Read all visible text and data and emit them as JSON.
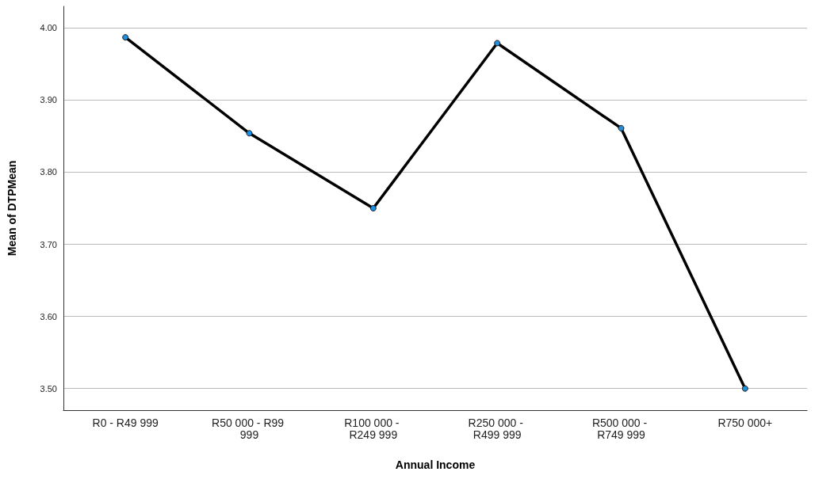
{
  "chart_data": {
    "type": "line",
    "xlabel": "Annual Income",
    "ylabel": "Mean of DTPMean",
    "categories": [
      "R0 - R49 999",
      "R50 000 - R99 999",
      "R100 000 - R249 999",
      "R250 000 - R499 999",
      "R500 000 - R749 999",
      "R750 000+"
    ],
    "series": [
      {
        "color": "#000000",
        "colors": [
          "#1f8fe0",
          "#1f8fe0",
          "#1f8fe0",
          "#1f8fe0",
          "#1f8fe0",
          "#1f8fe0"
        ],
        "values": [
          3.987,
          3.854,
          3.75,
          3.979,
          3.861,
          3.5
        ]
      }
    ],
    "ylim": [
      3.47,
      4.03
    ],
    "yticks": [
      {
        "value": 3.5,
        "label": "3.50"
      },
      {
        "value": 3.6,
        "label": "3.60"
      },
      {
        "value": 3.7,
        "label": "3.70"
      },
      {
        "value": 3.8,
        "label": "3.80"
      },
      {
        "value": 3.9,
        "label": "3.90"
      },
      {
        "value": 4.0,
        "label": "4.00"
      }
    ],
    "grid": "y",
    "marker": "circle",
    "line_style": "solid"
  }
}
